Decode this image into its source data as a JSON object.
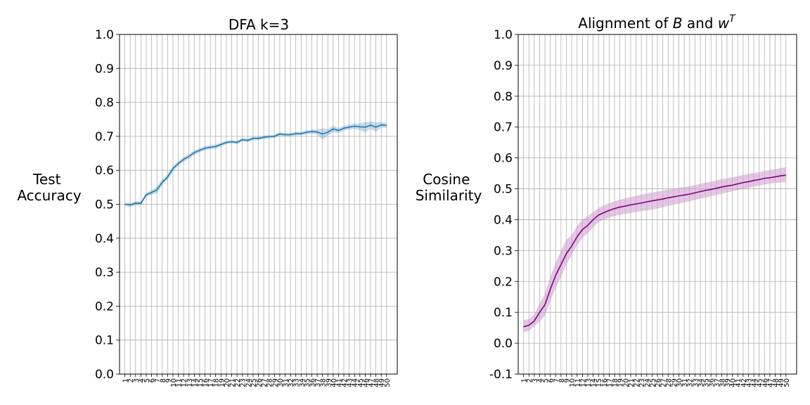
{
  "chart_data": [
    {
      "type": "line",
      "title": "DFA k=3",
      "ylabel": "Test\nAccuracy",
      "xlabel": "",
      "xlim": [
        -1,
        51
      ],
      "ylim": [
        0,
        1
      ],
      "yticks": [
        0.0,
        0.1,
        0.2,
        0.3,
        0.4,
        0.5,
        0.6,
        0.7,
        0.8,
        0.9,
        1.0
      ],
      "xticks": [
        "1",
        "2",
        "3",
        "4",
        "5",
        "6",
        "7",
        "8",
        "9",
        "10",
        "11",
        "12",
        "13",
        "14",
        "15",
        "16",
        "17",
        "18",
        "19",
        "20",
        "21",
        "22",
        "23",
        "24",
        "25",
        "26",
        "27",
        "28",
        "29",
        "30",
        "31",
        "32",
        "33",
        "34",
        "35",
        "36",
        "37",
        "38",
        "39",
        "40",
        "41",
        "42",
        "43",
        "44",
        "45",
        "46",
        "47",
        "48",
        "49",
        "50"
      ],
      "grid": true,
      "color": "#1f77b4",
      "x": [
        0,
        1,
        2,
        3,
        4,
        5,
        6,
        7,
        8,
        9,
        10,
        11,
        12,
        13,
        14,
        15,
        16,
        17,
        18,
        19,
        20,
        21,
        22,
        23,
        24,
        25,
        26,
        27,
        28,
        29,
        30,
        31,
        32,
        33,
        34,
        35,
        36,
        37,
        38,
        39,
        40,
        41,
        42,
        43,
        44,
        45,
        46,
        47,
        48,
        49
      ],
      "series": [
        {
          "mean": [
            0.5,
            0.498,
            0.503,
            0.503,
            0.528,
            0.535,
            0.542,
            0.565,
            0.58,
            0.605,
            0.62,
            0.632,
            0.641,
            0.652,
            0.659,
            0.665,
            0.668,
            0.67,
            0.676,
            0.682,
            0.684,
            0.682,
            0.69,
            0.688,
            0.694,
            0.694,
            0.697,
            0.699,
            0.7,
            0.707,
            0.705,
            0.705,
            0.708,
            0.708,
            0.712,
            0.714,
            0.713,
            0.707,
            0.712,
            0.722,
            0.717,
            0.724,
            0.727,
            0.73,
            0.728,
            0.727,
            0.733,
            0.727,
            0.734,
            0.732
          ],
          "lower": [
            0.495,
            0.492,
            0.497,
            0.498,
            0.522,
            0.528,
            0.532,
            0.556,
            0.572,
            0.597,
            0.613,
            0.625,
            0.634,
            0.645,
            0.653,
            0.659,
            0.662,
            0.664,
            0.67,
            0.677,
            0.679,
            0.677,
            0.685,
            0.683,
            0.689,
            0.689,
            0.692,
            0.694,
            0.695,
            0.702,
            0.7,
            0.7,
            0.703,
            0.703,
            0.706,
            0.708,
            0.706,
            0.69,
            0.703,
            0.712,
            0.71,
            0.717,
            0.72,
            0.722,
            0.718,
            0.712,
            0.722,
            0.713,
            0.726,
            0.725
          ],
          "upper": [
            0.505,
            0.504,
            0.509,
            0.508,
            0.534,
            0.542,
            0.552,
            0.574,
            0.588,
            0.613,
            0.627,
            0.639,
            0.648,
            0.659,
            0.665,
            0.671,
            0.674,
            0.676,
            0.682,
            0.687,
            0.689,
            0.687,
            0.695,
            0.693,
            0.699,
            0.699,
            0.702,
            0.704,
            0.705,
            0.712,
            0.71,
            0.71,
            0.713,
            0.713,
            0.718,
            0.72,
            0.72,
            0.724,
            0.721,
            0.732,
            0.724,
            0.731,
            0.734,
            0.738,
            0.738,
            0.742,
            0.744,
            0.741,
            0.742,
            0.739
          ]
        }
      ]
    },
    {
      "type": "line",
      "title": "Alignment of B and w^T",
      "title_parts": {
        "prefix": "Alignment of ",
        "var1": "B",
        "mid": " and ",
        "var2": "w",
        "sup": "T"
      },
      "ylabel": "Cosine\nSimilarity",
      "xlabel": "",
      "xlim": [
        -1,
        51
      ],
      "ylim": [
        -0.1,
        1.0
      ],
      "yticks": [
        -0.1,
        0.0,
        0.1,
        0.2,
        0.3,
        0.4,
        0.5,
        0.6,
        0.7,
        0.8,
        0.9,
        1.0
      ],
      "xticks": [
        "1",
        "2",
        "3",
        "4",
        "5",
        "6",
        "7",
        "8",
        "9",
        "10",
        "11",
        "12",
        "13",
        "14",
        "15",
        "16",
        "17",
        "18",
        "19",
        "20",
        "21",
        "22",
        "23",
        "24",
        "25",
        "26",
        "27",
        "28",
        "29",
        "30",
        "31",
        "32",
        "33",
        "34",
        "35",
        "36",
        "37",
        "38",
        "39",
        "40",
        "41",
        "42",
        "43",
        "44",
        "45",
        "46",
        "47",
        "48",
        "49",
        "50"
      ],
      "grid": true,
      "color": "#800080",
      "band_color": "#cc99cc",
      "x": [
        0,
        1,
        2,
        3,
        4,
        5,
        6,
        7,
        8,
        9,
        10,
        11,
        12,
        13,
        14,
        15,
        16,
        17,
        18,
        19,
        20,
        21,
        22,
        23,
        24,
        25,
        26,
        27,
        28,
        29,
        30,
        31,
        32,
        33,
        34,
        35,
        36,
        37,
        38,
        39,
        40,
        41,
        42,
        43,
        44,
        45,
        46,
        47,
        48,
        49
      ],
      "series": [
        {
          "mean": [
            0.053,
            0.058,
            0.072,
            0.1,
            0.125,
            0.175,
            0.22,
            0.255,
            0.29,
            0.315,
            0.345,
            0.368,
            0.382,
            0.4,
            0.415,
            0.423,
            0.43,
            0.436,
            0.441,
            0.444,
            0.448,
            0.451,
            0.454,
            0.458,
            0.461,
            0.464,
            0.467,
            0.471,
            0.474,
            0.477,
            0.48,
            0.483,
            0.487,
            0.491,
            0.495,
            0.498,
            0.502,
            0.506,
            0.509,
            0.512,
            0.516,
            0.52,
            0.523,
            0.527,
            0.53,
            0.534,
            0.536,
            0.539,
            0.542,
            0.544
          ],
          "lower": [
            0.035,
            0.04,
            0.055,
            0.07,
            0.09,
            0.135,
            0.18,
            0.215,
            0.255,
            0.285,
            0.318,
            0.34,
            0.357,
            0.375,
            0.392,
            0.4,
            0.407,
            0.412,
            0.416,
            0.419,
            0.422,
            0.425,
            0.428,
            0.43,
            0.433,
            0.436,
            0.44,
            0.445,
            0.448,
            0.452,
            0.456,
            0.46,
            0.464,
            0.468,
            0.472,
            0.476,
            0.48,
            0.484,
            0.488,
            0.492,
            0.496,
            0.5,
            0.503,
            0.507,
            0.51,
            0.514,
            0.517,
            0.519,
            0.521,
            0.522
          ],
          "upper": [
            0.075,
            0.078,
            0.092,
            0.128,
            0.16,
            0.215,
            0.26,
            0.3,
            0.335,
            0.35,
            0.38,
            0.4,
            0.412,
            0.425,
            0.438,
            0.447,
            0.453,
            0.46,
            0.465,
            0.469,
            0.473,
            0.477,
            0.481,
            0.485,
            0.488,
            0.491,
            0.494,
            0.497,
            0.5,
            0.503,
            0.506,
            0.509,
            0.512,
            0.516,
            0.52,
            0.523,
            0.527,
            0.531,
            0.534,
            0.537,
            0.541,
            0.545,
            0.548,
            0.551,
            0.554,
            0.558,
            0.561,
            0.564,
            0.567,
            0.57
          ]
        }
      ]
    }
  ]
}
